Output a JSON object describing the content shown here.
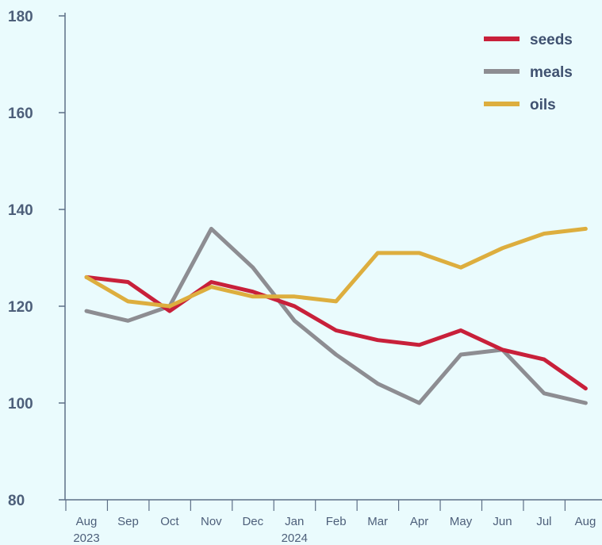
{
  "chart_data": {
    "type": "line",
    "categories": [
      "Aug",
      "Sep",
      "Oct",
      "Nov",
      "Dec",
      "Jan",
      "Feb",
      "Mar",
      "Apr",
      "May",
      "Jun",
      "Jul",
      "Aug"
    ],
    "category_years": [
      "2023",
      "",
      "",
      "",
      "",
      "2024",
      "",
      "",
      "",
      "",
      "",
      "",
      ""
    ],
    "ylim": [
      80,
      180
    ],
    "yticks": [
      80,
      100,
      120,
      140,
      160,
      180
    ],
    "legend_position": "top-right",
    "grid": false,
    "series": [
      {
        "name": "seeds",
        "color": "#c8203a",
        "values": [
          126,
          125,
          119,
          125,
          123,
          120,
          115,
          113,
          112,
          115,
          111,
          109,
          103
        ]
      },
      {
        "name": "meals",
        "color": "#8d8d92",
        "values": [
          119,
          117,
          120,
          136,
          128,
          117,
          110,
          104,
          100,
          110,
          111,
          102,
          100
        ]
      },
      {
        "name": "oils",
        "color": "#ddae3e",
        "values": [
          126,
          121,
          120,
          124,
          122,
          122,
          121,
          131,
          131,
          128,
          132,
          135,
          136
        ]
      }
    ]
  }
}
